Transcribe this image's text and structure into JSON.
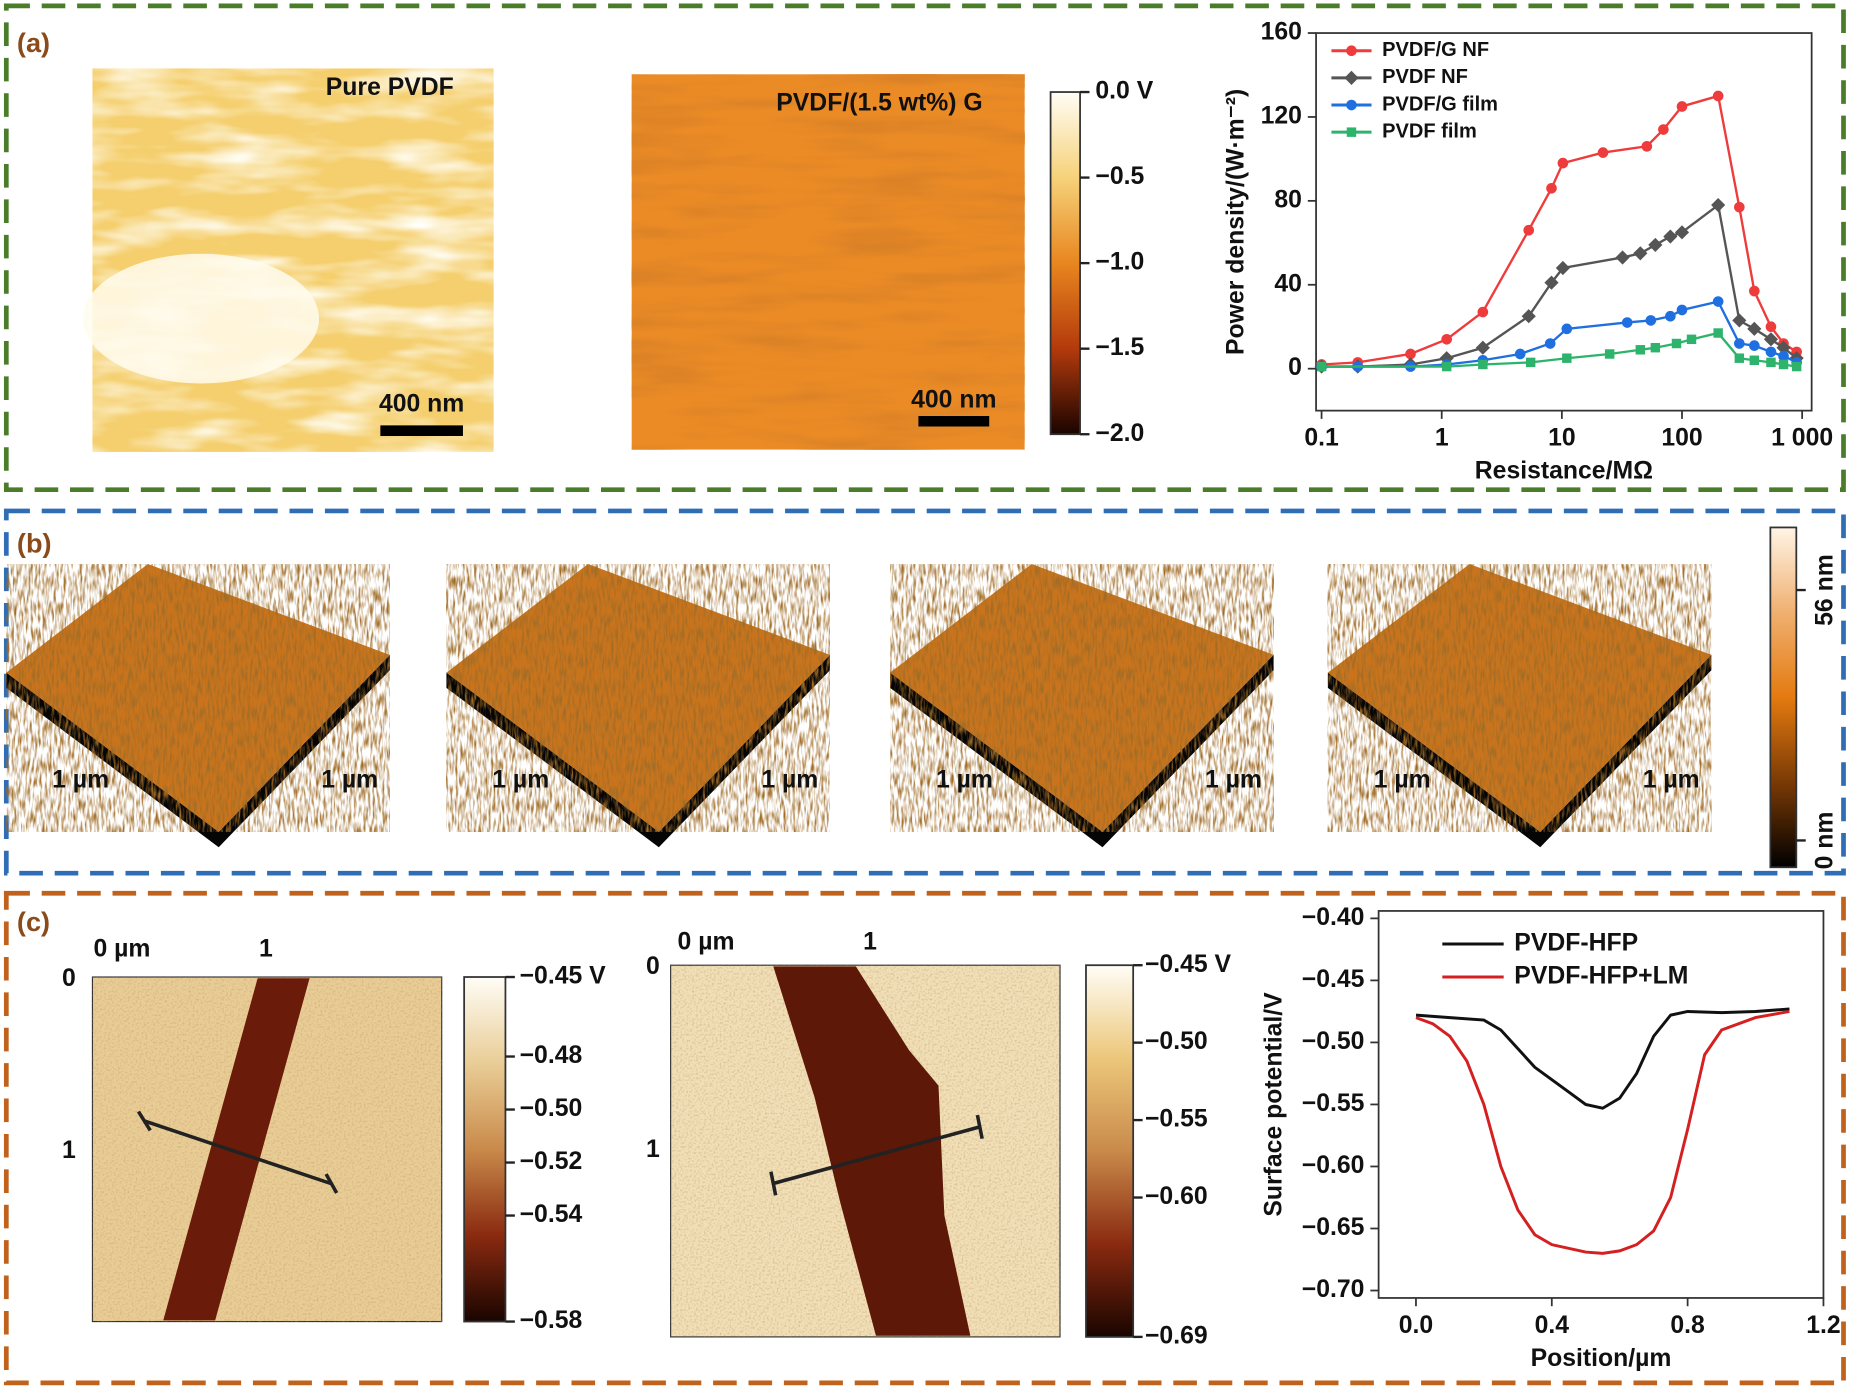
{
  "panel_labels": [
    "(a)",
    "(b)",
    "(c)"
  ],
  "afm_a": [
    {
      "label": "Pure PVDF",
      "scale_bar": "400 nm"
    },
    {
      "label": "PVDF/(1.5 wt%) G",
      "scale_bar": "400 nm"
    }
  ],
  "surfaces_b": [
    [
      "1 µm",
      "1 µm"
    ],
    [
      "1 µm",
      "1 µm"
    ],
    [
      "1 µm",
      "1 µm"
    ],
    [
      "1 µm",
      "1 µm"
    ]
  ],
  "kpfm_c": [
    {
      "top_ticks": [
        "0 µm",
        "1"
      ],
      "left_ticks": [
        "0",
        "1"
      ]
    },
    {
      "top_ticks": [
        "0 µm",
        "1"
      ],
      "left_ticks": [
        "0",
        "1"
      ]
    }
  ],
  "chart_data": [
    {
      "type": "colorbar",
      "colors": [
        "#fffdf5",
        "#f6d27a",
        "#e8861f",
        "#b33a0c",
        "#1a0400"
      ],
      "ylim": [
        -2,
        0
      ],
      "yticks": [
        {
          "value": 0,
          "label": "0.0 V"
        },
        {
          "value": -0.5,
          "label": "−0.5"
        },
        {
          "value": -1,
          "label": "−1.0"
        },
        {
          "value": -1.5,
          "label": "−1.5"
        },
        {
          "value": -2,
          "label": "−2.0"
        }
      ]
    },
    {
      "type": "line",
      "xlabel": "Resistance/MΩ",
      "ylabel": "Power density/(W·m⁻²)",
      "xscale": "log",
      "xlim": [
        0.09,
        1200
      ],
      "ylim": [
        -20,
        160
      ],
      "xticks": [
        0.1,
        1,
        10,
        100,
        {
          "value": 1000,
          "label": "1 000"
        }
      ],
      "yticks": [
        0,
        40,
        80,
        120,
        160
      ],
      "series": [
        {
          "name": "PVDF/G NF",
          "color": "#ee3b3b",
          "marker": "circle",
          "x": [
            0.1,
            0.2,
            0.55,
            1.1,
            2.2,
            5.3,
            8.2,
            10.2,
            22,
            51,
            70,
            100,
            200,
            300,
            400,
            550,
            700,
            900
          ],
          "values": [
            2,
            3,
            7,
            14,
            27,
            66,
            86,
            98,
            103,
            106,
            114,
            125,
            130,
            77,
            37,
            20,
            12,
            8
          ]
        },
        {
          "name": "PVDF NF",
          "color": "#555555",
          "marker": "diamond",
          "x": [
            0.1,
            0.2,
            0.55,
            1.1,
            2.2,
            5.3,
            8.2,
            10.2,
            32,
            45,
            60,
            80,
            100,
            200,
            300,
            400,
            550,
            700,
            900
          ],
          "values": [
            1,
            1,
            2,
            5,
            10,
            25,
            41,
            48,
            53,
            55,
            59,
            63,
            65,
            78,
            23,
            19,
            14,
            10,
            5
          ]
        },
        {
          "name": "PVDF/G film",
          "color": "#1f6fe0",
          "marker": "circle",
          "x": [
            0.1,
            0.2,
            0.55,
            1.1,
            2.2,
            4.5,
            8,
            11,
            35,
            55,
            80,
            100,
            200,
            300,
            400,
            550,
            700,
            900
          ],
          "values": [
            1,
            1,
            1,
            2,
            4,
            7,
            12,
            19,
            22,
            23,
            25,
            28,
            32,
            12,
            11,
            8,
            6,
            3
          ]
        },
        {
          "name": "PVDF film",
          "color": "#2db36b",
          "marker": "square",
          "x": [
            0.1,
            1.1,
            2.2,
            5.5,
            11,
            25,
            45,
            60,
            90,
            120,
            200,
            300,
            400,
            550,
            700,
            900
          ],
          "values": [
            1,
            1,
            2,
            3,
            5,
            7,
            9,
            10,
            12,
            14,
            17,
            5,
            4,
            3,
            2,
            1
          ]
        }
      ]
    },
    {
      "type": "colorbar",
      "colors": [
        "#fff4e6",
        "#f0b070",
        "#e47a10",
        "#7a3a05",
        "#000000"
      ],
      "ylim": [
        -6,
        70
      ],
      "rotate_labels": true,
      "yticks": [
        {
          "value": 56,
          "label": "56 nm"
        },
        {
          "value": 0,
          "label": "0 nm"
        }
      ]
    },
    {
      "type": "colorbar",
      "colors": [
        "#fffdf6",
        "#e9cd96",
        "#c98a4a",
        "#8a2a10",
        "#1a0500"
      ],
      "ylim": [
        -0.58,
        -0.45
      ],
      "yticks": [
        {
          "value": -0.45,
          "label": "−0.45 V"
        },
        {
          "value": -0.48,
          "label": "−0.48"
        },
        {
          "value": -0.5,
          "label": "−0.50"
        },
        {
          "value": -0.52,
          "label": "−0.52"
        },
        {
          "value": -0.54,
          "label": "−0.54"
        },
        {
          "value": -0.58,
          "label": "−0.58"
        }
      ]
    },
    {
      "type": "colorbar",
      "colors": [
        "#fffdf6",
        "#ecc77a",
        "#c98a4a",
        "#8a2a10",
        "#1a0500"
      ],
      "ylim": [
        -0.69,
        -0.45
      ],
      "yticks": [
        {
          "value": -0.45,
          "label": "−0.45 V"
        },
        {
          "value": -0.5,
          "label": "−0.50"
        },
        {
          "value": -0.55,
          "label": "−0.55"
        },
        {
          "value": -0.6,
          "label": "−0.60"
        },
        {
          "value": -0.69,
          "label": "−0.69"
        }
      ]
    },
    {
      "type": "line",
      "xlabel": "Position/µm",
      "ylabel": "Surface potential/V",
      "xlim": [
        -0.11,
        1.2
      ],
      "ylim": [
        -0.706,
        -0.394
      ],
      "xticks": [
        {
          "value": 0,
          "label": "0.0"
        },
        0.4,
        0.8,
        1.2
      ],
      "yticks": [
        {
          "value": -0.4,
          "label": "−0.40"
        },
        {
          "value": -0.45,
          "label": "−0.45"
        },
        {
          "value": -0.5,
          "label": "−0.50"
        },
        {
          "value": -0.55,
          "label": "−0.55"
        },
        {
          "value": -0.6,
          "label": "−0.60"
        },
        {
          "value": -0.65,
          "label": "−0.65"
        },
        {
          "value": -0.7,
          "label": "−0.70"
        }
      ],
      "series": [
        {
          "name": "PVDF-HFP",
          "color": "#111111",
          "x": [
            0,
            0.1,
            0.2,
            0.25,
            0.3,
            0.35,
            0.4,
            0.45,
            0.5,
            0.55,
            0.6,
            0.65,
            0.7,
            0.75,
            0.8,
            0.9,
            1.0,
            1.1
          ],
          "values": [
            -0.478,
            -0.48,
            -0.482,
            -0.49,
            -0.505,
            -0.52,
            -0.53,
            -0.54,
            -0.55,
            -0.553,
            -0.545,
            -0.525,
            -0.495,
            -0.478,
            -0.475,
            -0.476,
            -0.475,
            -0.473
          ]
        },
        {
          "name": "PVDF-HFP+LM",
          "color": "#d42020",
          "x": [
            0,
            0.05,
            0.1,
            0.15,
            0.2,
            0.25,
            0.3,
            0.35,
            0.4,
            0.5,
            0.55,
            0.6,
            0.65,
            0.7,
            0.75,
            0.8,
            0.85,
            0.9,
            1.0,
            1.1
          ],
          "values": [
            -0.48,
            -0.485,
            -0.495,
            -0.515,
            -0.55,
            -0.6,
            -0.635,
            -0.655,
            -0.663,
            -0.669,
            -0.67,
            -0.668,
            -0.663,
            -0.652,
            -0.625,
            -0.57,
            -0.51,
            -0.49,
            -0.48,
            -0.475
          ]
        }
      ]
    }
  ]
}
